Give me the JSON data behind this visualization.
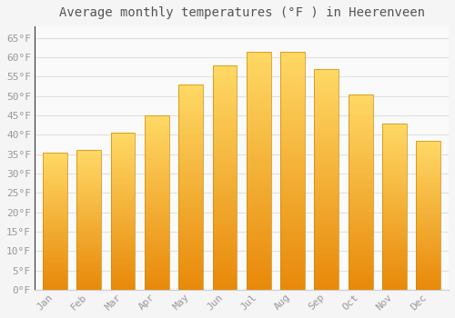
{
  "title": "Average monthly temperatures (°F ) in Heerenveen",
  "months": [
    "Jan",
    "Feb",
    "Mar",
    "Apr",
    "May",
    "Jun",
    "Jul",
    "Aug",
    "Sep",
    "Oct",
    "Nov",
    "Dec"
  ],
  "values": [
    35.5,
    36.0,
    40.5,
    45.0,
    53.0,
    58.0,
    61.5,
    61.5,
    57.0,
    50.5,
    43.0,
    38.5
  ],
  "bar_color_top": "#FFD966",
  "bar_color_bottom": "#E8890A",
  "background_color": "#F5F5F5",
  "plot_bg_color": "#FAFAFA",
  "grid_color": "#E0E0E0",
  "text_color": "#999999",
  "title_color": "#555555",
  "ylim": [
    0,
    68
  ],
  "ytick_step": 5,
  "title_fontsize": 10,
  "tick_fontsize": 8,
  "bar_width": 0.72
}
